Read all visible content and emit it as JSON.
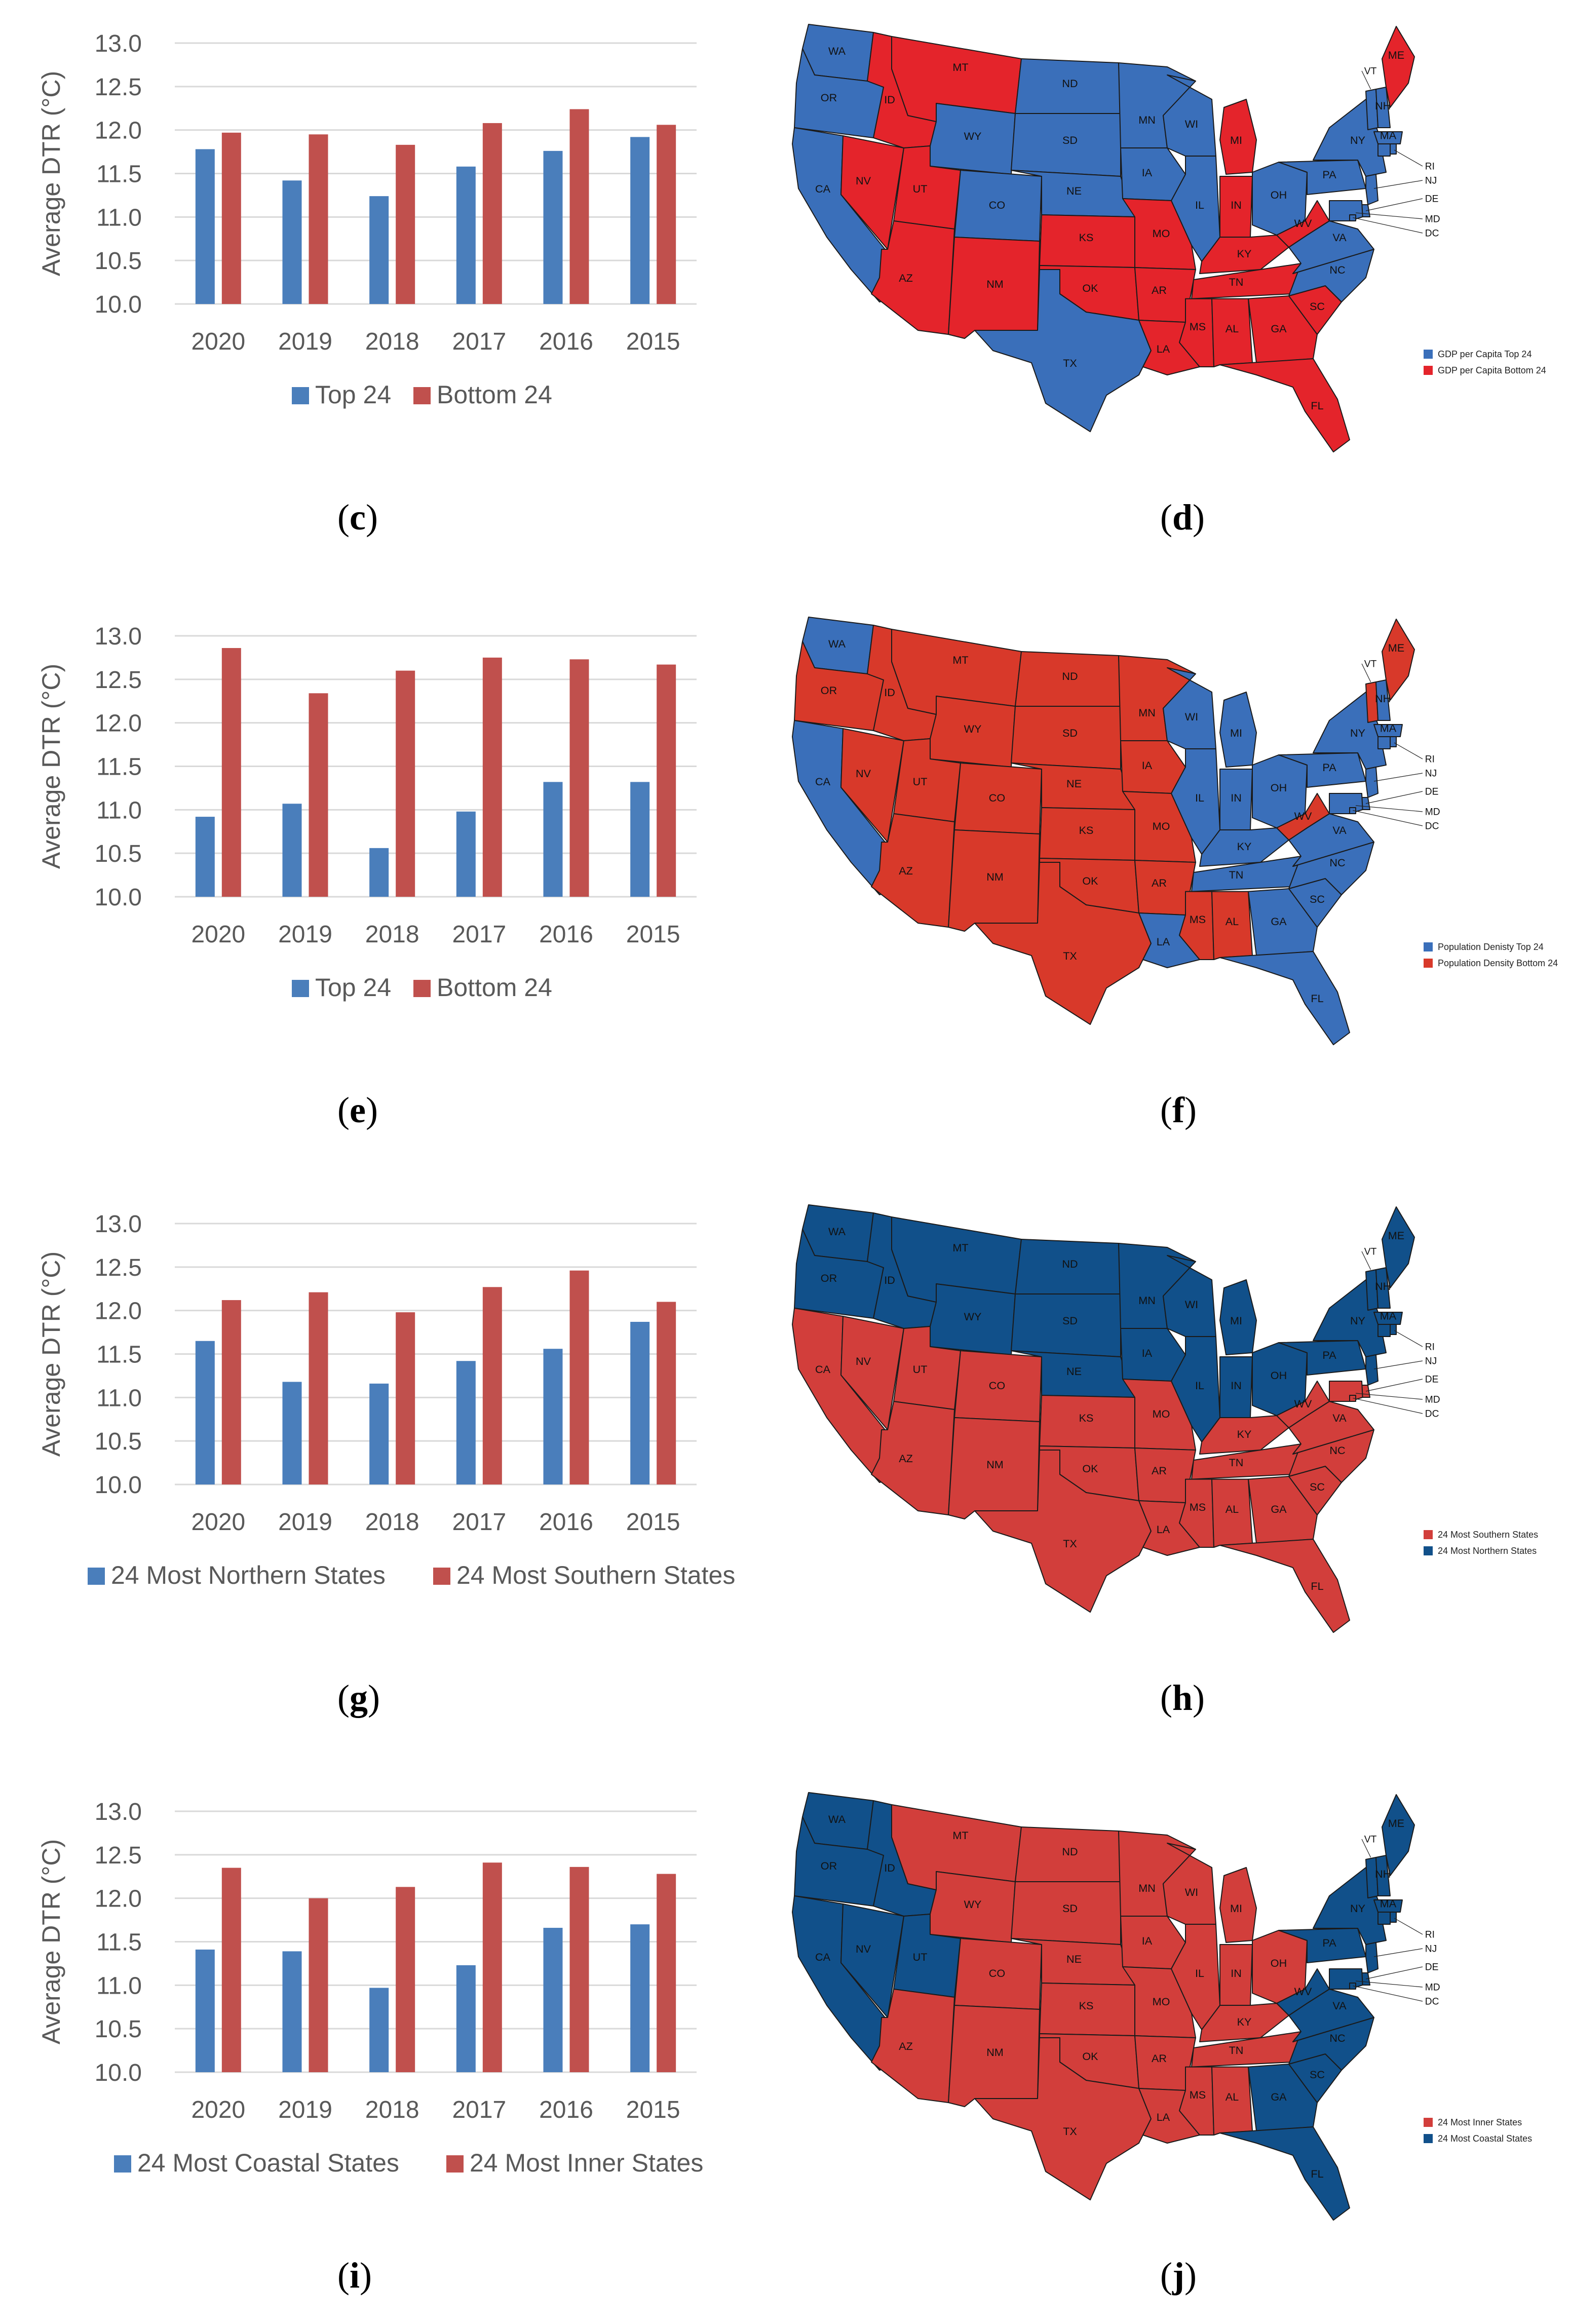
{
  "chart_data": [
    {
      "type": "bar",
      "panel": "c",
      "ylabel": "Average DTR (°C)",
      "ylim": [
        10.0,
        13.0
      ],
      "yticks": [
        "13.0",
        "12.5",
        "12.0",
        "11.5",
        "11.0",
        "10.5",
        "10.0"
      ],
      "categories": [
        "2020",
        "2019",
        "2018",
        "2017",
        "2016",
        "2015"
      ],
      "series": [
        {
          "name": "Top 24",
          "color": "#4a7ebb",
          "values": [
            11.78,
            11.42,
            11.24,
            11.58,
            11.76,
            11.92
          ]
        },
        {
          "name": "Bottom 24",
          "color": "#c0504d",
          "values": [
            11.97,
            11.95,
            11.83,
            12.08,
            12.24,
            12.06
          ]
        }
      ]
    },
    {
      "type": "bar",
      "panel": "e",
      "ylabel": "Average DTR (°C)",
      "ylim": [
        10.0,
        13.0
      ],
      "yticks": [
        "13.0",
        "12.5",
        "12.0",
        "11.5",
        "11.0",
        "10.5",
        "10.0"
      ],
      "categories": [
        "2020",
        "2019",
        "2018",
        "2017",
        "2016",
        "2015"
      ],
      "series": [
        {
          "name": "Top 24",
          "color": "#4a7ebb",
          "values": [
            10.92,
            11.07,
            10.56,
            10.98,
            11.32,
            11.32
          ]
        },
        {
          "name": "Bottom 24",
          "color": "#c0504d",
          "values": [
            12.86,
            12.34,
            12.6,
            12.75,
            12.73,
            12.67
          ]
        }
      ]
    },
    {
      "type": "bar",
      "panel": "g",
      "ylabel": "Average DTR (°C)",
      "ylim": [
        10.0,
        13.0
      ],
      "yticks": [
        "13.0",
        "12.5",
        "12.0",
        "11.5",
        "11.0",
        "10.5",
        "10.0"
      ],
      "categories": [
        "2020",
        "2019",
        "2018",
        "2017",
        "2016",
        "2015"
      ],
      "series": [
        {
          "name": "24 Most Northern States",
          "color": "#4a7ebb",
          "values": [
            11.65,
            11.18,
            11.16,
            11.42,
            11.56,
            11.87
          ]
        },
        {
          "name": "24 Most Southern States",
          "color": "#c0504d",
          "values": [
            12.12,
            12.21,
            11.98,
            12.27,
            12.46,
            12.1
          ]
        }
      ]
    },
    {
      "type": "bar",
      "panel": "i",
      "ylabel": "Average DTR (°C)",
      "ylim": [
        10.0,
        13.0
      ],
      "yticks": [
        "13.0",
        "12.5",
        "12.0",
        "11.5",
        "11.0",
        "10.5",
        "10.0"
      ],
      "categories": [
        "2020",
        "2019",
        "2018",
        "2017",
        "2016",
        "2015"
      ],
      "series": [
        {
          "name": "24 Most Coastal States",
          "color": "#4a7ebb",
          "values": [
            11.41,
            11.39,
            10.97,
            11.23,
            11.66,
            11.7
          ]
        },
        {
          "name": "24 Most Inner States",
          "color": "#c0504d",
          "values": [
            12.35,
            12.0,
            12.13,
            12.41,
            12.36,
            12.28
          ]
        }
      ]
    }
  ],
  "captions": [
    "(c)",
    "(d)",
    "(e)",
    "(f)",
    "(g)",
    "(h)",
    "(i)",
    "(j)"
  ],
  "captions_letters": [
    "c",
    "d",
    "e",
    "f",
    "g",
    "h",
    "i",
    "j"
  ],
  "maps": [
    {
      "panel": "d",
      "blue": "#3a6fba",
      "red": "#e4242b",
      "legend": [
        "GDP per Capita Top 24",
        "GDP per Capita Bottom 24"
      ],
      "blue_states": [
        "WA",
        "OR",
        "CA",
        "WY",
        "CO",
        "ND",
        "SD",
        "NE",
        "MN",
        "IA",
        "WI",
        "IL",
        "TX",
        "OH",
        "VA",
        "NC",
        "PA",
        "NY",
        "VT",
        "NH",
        "MA",
        "RI",
        "CT",
        "NJ",
        "DE",
        "MD",
        "DC"
      ],
      "red_states": [
        "MT",
        "ID",
        "NV",
        "UT",
        "AZ",
        "NM",
        "KS",
        "OK",
        "MO",
        "AR",
        "LA",
        "MS",
        "AL",
        "GA",
        "FL",
        "SC",
        "TN",
        "KY",
        "IN",
        "MI",
        "WV",
        "ME"
      ]
    },
    {
      "panel": "f",
      "blue": "#3a6fba",
      "red": "#d8392a",
      "legend": [
        "Population Denisty Top 24",
        "Population Density Bottom 24"
      ],
      "blue_states": [
        "WA",
        "CA",
        "WI",
        "MI",
        "IL",
        "IN",
        "OH",
        "KY",
        "TN",
        "PA",
        "NY",
        "VA",
        "NC",
        "SC",
        "GA",
        "FL",
        "LA",
        "NJ",
        "DE",
        "MD",
        "DC",
        "MA",
        "CT",
        "RI",
        "NH"
      ],
      "red_states": [
        "OR",
        "ID",
        "MT",
        "WY",
        "NV",
        "UT",
        "CO",
        "AZ",
        "NM",
        "TX",
        "ND",
        "SD",
        "NE",
        "KS",
        "OK",
        "MN",
        "IA",
        "MO",
        "AR",
        "MS",
        "AL",
        "WV",
        "ME",
        "VT"
      ]
    },
    {
      "panel": "h",
      "blue": "#11508a",
      "red": "#d23e3b",
      "legend": [
        "24 Most Southern States",
        "24 Most Northern States"
      ],
      "blue_states": [
        "WA",
        "OR",
        "ID",
        "MT",
        "WY",
        "ND",
        "SD",
        "NE",
        "MN",
        "IA",
        "WI",
        "MI",
        "IL",
        "IN",
        "OH",
        "PA",
        "NY",
        "VT",
        "NH",
        "ME",
        "MA",
        "CT",
        "RI",
        "NJ"
      ],
      "red_states": [
        "CA",
        "NV",
        "UT",
        "CO",
        "AZ",
        "NM",
        "KS",
        "OK",
        "TX",
        "MO",
        "AR",
        "LA",
        "MS",
        "AL",
        "GA",
        "FL",
        "SC",
        "NC",
        "TN",
        "KY",
        "VA",
        "WV",
        "MD",
        "DE",
        "DC"
      ]
    },
    {
      "panel": "j",
      "blue": "#11508a",
      "red": "#d23e3b",
      "legend": [
        "24 Most Inner States",
        "24 Most Coastal States"
      ],
      "blue_states": [
        "WA",
        "OR",
        "CA",
        "NV",
        "ID",
        "UT",
        "PA",
        "NY",
        "VT",
        "NH",
        "ME",
        "MA",
        "CT",
        "RI",
        "NJ",
        "DE",
        "MD",
        "DC",
        "VA",
        "NC",
        "SC",
        "GA",
        "FL",
        "WV"
      ],
      "red_states": [
        "MT",
        "WY",
        "CO",
        "AZ",
        "NM",
        "TX",
        "ND",
        "SD",
        "NE",
        "KS",
        "OK",
        "MN",
        "IA",
        "MO",
        "AR",
        "LA",
        "MS",
        "AL",
        "TN",
        "KY",
        "IL",
        "IN",
        "OH",
        "WI",
        "MI"
      ]
    }
  ],
  "state_labels_inside": [
    "WA",
    "OR",
    "CA",
    "ID",
    "NV",
    "MT",
    "WY",
    "UT",
    "AZ",
    "CO",
    "NM",
    "ND",
    "SD",
    "NE",
    "KS",
    "OK",
    "TX",
    "MN",
    "IA",
    "MO",
    "AR",
    "LA",
    "WI",
    "IL",
    "MI",
    "IN",
    "OH",
    "KY",
    "TN",
    "MS",
    "AL",
    "GA",
    "FL",
    "SC",
    "NC",
    "VA",
    "WV",
    "PA",
    "NY",
    "ME",
    "NH",
    "MA"
  ],
  "state_labels_outside": [
    "VT",
    "RI",
    "NJ",
    "DE",
    "MD",
    "DC"
  ]
}
